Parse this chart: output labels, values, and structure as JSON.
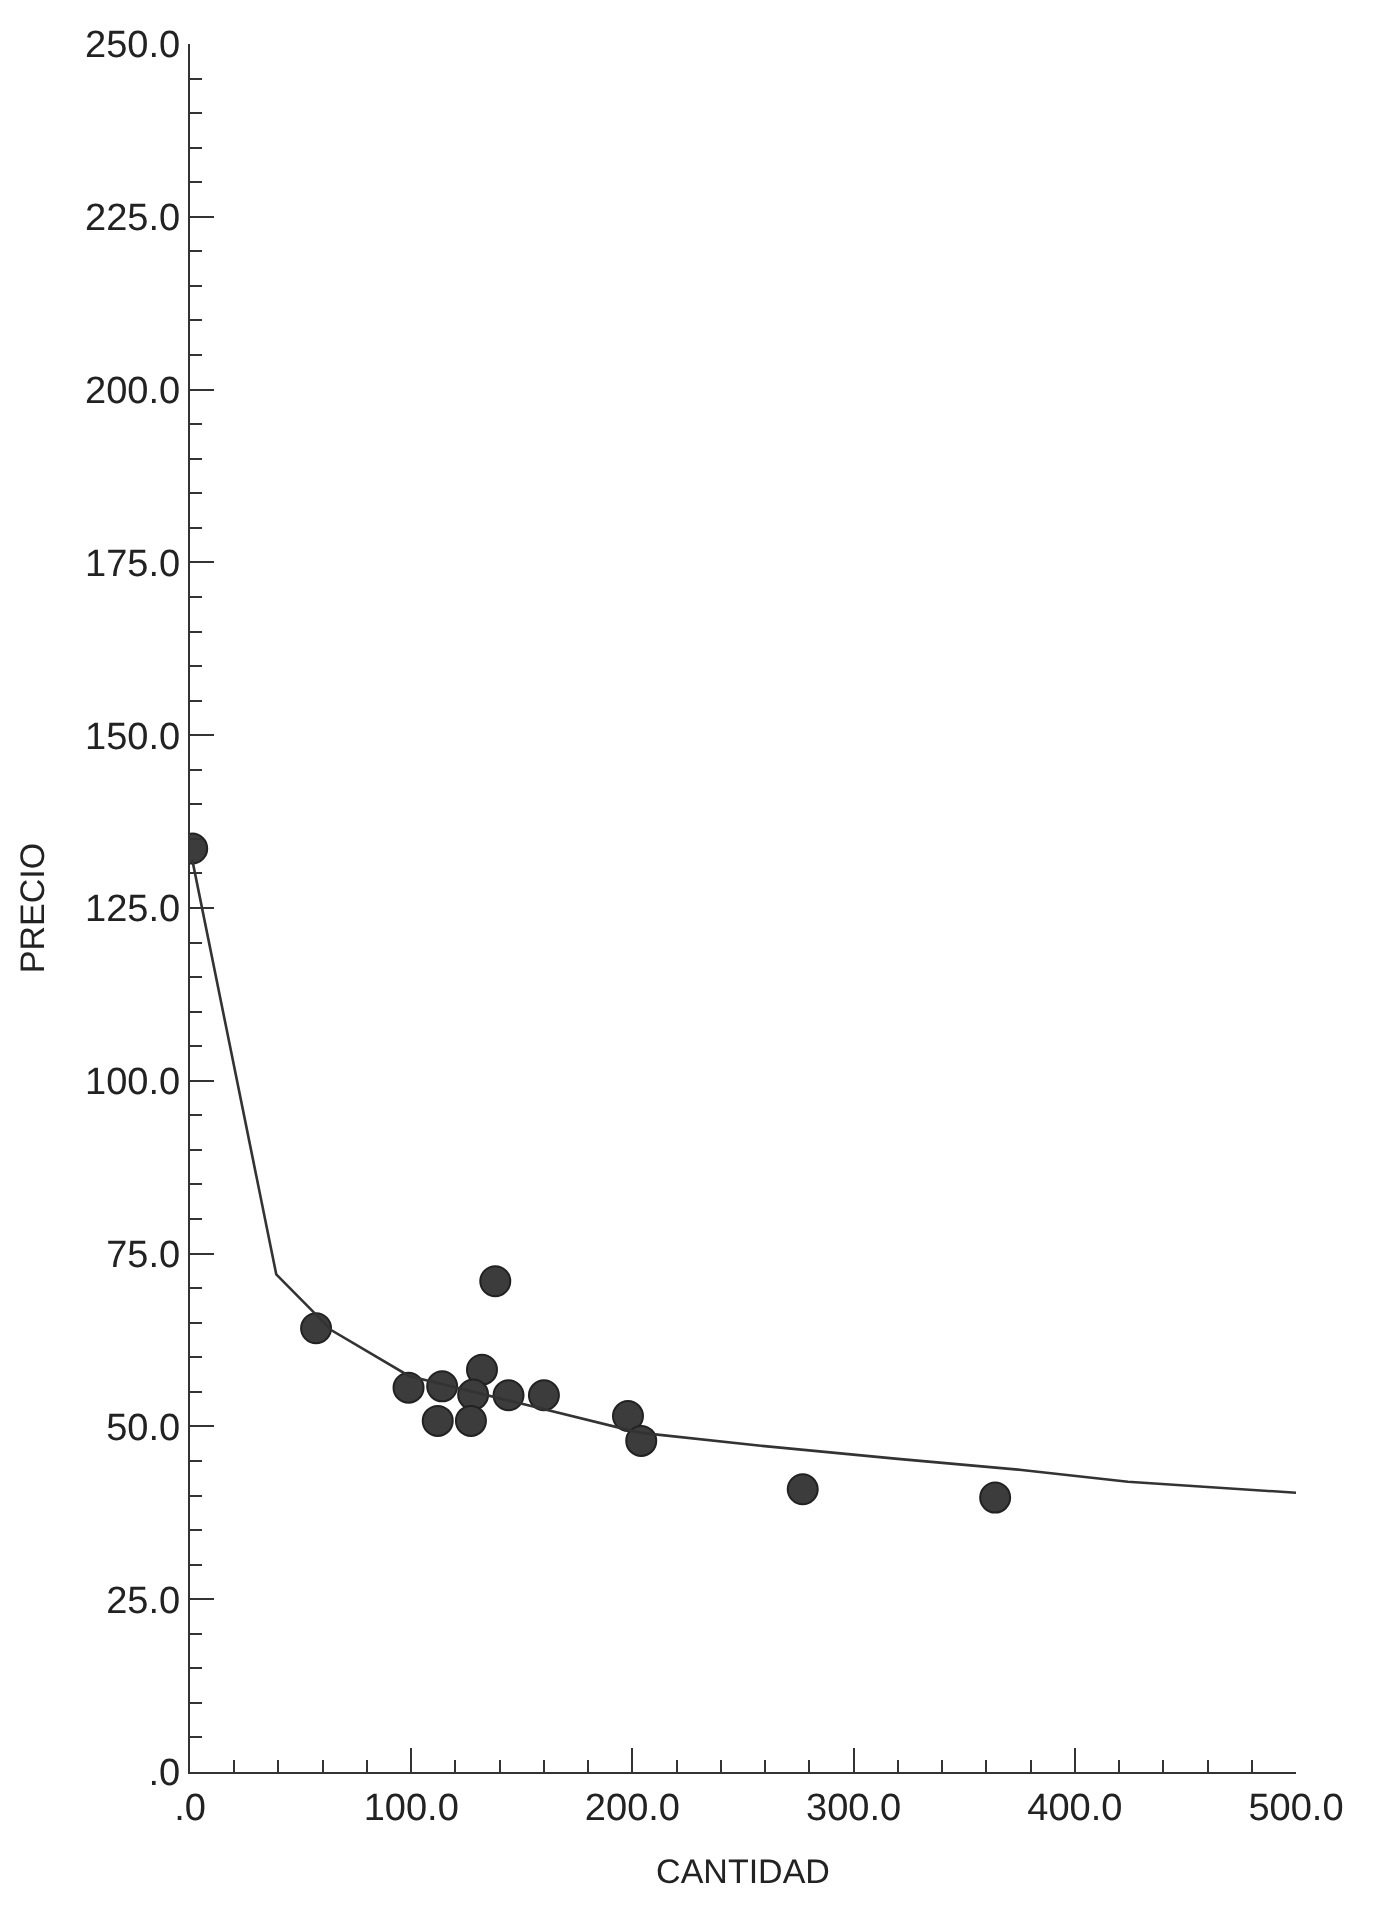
{
  "chart_data": {
    "type": "scatter",
    "xlabel": "CANTIDAD",
    "ylabel": "PRECIO",
    "series": [
      {
        "color": "#3c3c3c",
        "marker": "circle",
        "x": [
          1,
          57,
          138,
          98.8,
          114,
          132,
          128,
          112,
          127,
          144,
          160,
          198,
          204,
          277,
          364
        ],
        "values": [
          133.6,
          64.2,
          71.0,
          55.6,
          55.8,
          58.2,
          54.6,
          50.8,
          50.8,
          54.5,
          54.5,
          51.5,
          47.9,
          40.9,
          39.7
        ]
      },
      {
        "type": "line",
        "color": "#333333",
        "marker": "none",
        "line_style": "solid",
        "x": [
          1,
          39,
          64,
          99,
          151,
          203,
          258,
          320,
          376,
          424,
          500
        ],
        "values": [
          132,
          72.0,
          63.9,
          57.3,
          53.2,
          49.1,
          47.2,
          45.3,
          43.7,
          42.0,
          40.4
        ]
      }
    ],
    "xlim": [
      0,
      500
    ],
    "ylim": [
      0,
      250
    ],
    "xticks": [
      {
        "value": 0,
        "label": ".0"
      },
      {
        "value": 100,
        "label": "100.0"
      },
      {
        "value": 200,
        "label": "200.0"
      },
      {
        "value": 300,
        "label": "300.0"
      },
      {
        "value": 400,
        "label": "400.0"
      },
      {
        "value": 500,
        "label": "500.0"
      }
    ],
    "yticks": [
      {
        "value": 0,
        "label": ".0"
      },
      {
        "value": 25,
        "label": "25.0"
      },
      {
        "value": 50,
        "label": "50.0"
      },
      {
        "value": 75,
        "label": "75.0"
      },
      {
        "value": 100,
        "label": "100.0"
      },
      {
        "value": 125,
        "label": "125.0"
      },
      {
        "value": 150,
        "label": "150.0"
      },
      {
        "value": 175,
        "label": "175.0"
      },
      {
        "value": 200,
        "label": "200.0"
      },
      {
        "value": 225,
        "label": "225.0"
      },
      {
        "value": 250,
        "label": "250.0"
      }
    ]
  }
}
